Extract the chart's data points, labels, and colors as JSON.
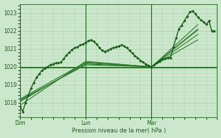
{
  "bg_color": "#cce8cc",
  "grid_color": "#aaccaa",
  "line_color_dark": "#1a5c1a",
  "line_color_mid": "#2d7a2d",
  "xlabel": "Pression niveau de la mer( hPa )",
  "ylim": [
    1017.2,
    1023.5
  ],
  "yticks": [
    1018,
    1019,
    1020,
    1021,
    1022,
    1023
  ],
  "xtick_positions": [
    0,
    24,
    48
  ],
  "xtick_labels": [
    "Dim",
    "Lun",
    "Mar"
  ],
  "xlim": [
    0,
    72
  ],
  "figsize": [
    3.2,
    2.0
  ],
  "dpi": 100,
  "main_x": [
    0,
    1,
    2,
    3,
    4,
    5,
    6,
    7,
    8,
    9,
    10,
    11,
    12,
    13,
    14,
    15,
    16,
    17,
    18,
    19,
    20,
    21,
    22,
    23,
    24,
    25,
    26,
    27,
    28,
    29,
    30,
    31,
    32,
    33,
    34,
    35,
    36,
    37,
    38,
    39,
    40,
    41,
    42,
    43,
    44,
    45,
    46,
    47,
    48,
    49,
    50,
    51,
    52,
    53,
    54,
    55,
    56,
    57,
    58,
    59,
    60,
    61,
    62,
    63,
    64,
    65,
    66,
    67,
    68,
    69,
    70,
    71
  ],
  "main_y": [
    1017.8,
    1017.5,
    1018.0,
    1018.4,
    1018.8,
    1019.1,
    1019.4,
    1019.6,
    1019.8,
    1019.9,
    1020.0,
    1020.1,
    1020.15,
    1020.2,
    1020.2,
    1020.25,
    1020.45,
    1020.65,
    1020.8,
    1020.95,
    1021.05,
    1021.1,
    1021.2,
    1021.25,
    1021.35,
    1021.45,
    1021.5,
    1021.4,
    1021.25,
    1021.05,
    1020.9,
    1020.85,
    1020.9,
    1021.0,
    1021.05,
    1021.1,
    1021.15,
    1021.2,
    1021.15,
    1021.05,
    1020.9,
    1020.75,
    1020.6,
    1020.5,
    1020.35,
    1020.25,
    1020.15,
    1020.05,
    1020.0,
    1020.1,
    1020.2,
    1020.3,
    1020.4,
    1020.45,
    1020.5,
    1020.5,
    1021.1,
    1021.6,
    1022.1,
    1022.3,
    1022.55,
    1022.8,
    1023.05,
    1023.1,
    1022.95,
    1022.75,
    1022.6,
    1022.5,
    1022.35,
    1022.55,
    1022.0,
    1022.0
  ],
  "main_color": "#1a5c1a",
  "main_lw": 1.0,
  "main_ms": 2.2,
  "lines": [
    {
      "x": [
        0,
        24,
        48,
        65
      ],
      "y": [
        1018.05,
        1020.2,
        1020.0,
        1022.05
      ]
    },
    {
      "x": [
        0,
        24,
        48,
        65
      ],
      "y": [
        1017.85,
        1020.3,
        1019.98,
        1022.35
      ]
    },
    {
      "x": [
        0,
        24,
        48,
        65
      ],
      "y": [
        1018.1,
        1020.15,
        1020.0,
        1021.8
      ]
    },
    {
      "x": [
        0,
        24,
        48,
        65
      ],
      "y": [
        1018.15,
        1020.1,
        1020.0,
        1021.5
      ]
    },
    {
      "x": [
        0,
        24,
        48,
        65
      ],
      "y": [
        1018.2,
        1020.25,
        1020.0,
        1022.1
      ]
    },
    {
      "x": [
        0,
        72
      ],
      "y": [
        1020.0,
        1020.0
      ]
    },
    {
      "x": [
        0,
        72
      ],
      "y": [
        1019.95,
        1019.95
      ]
    }
  ],
  "line_color": "#2d7a2d",
  "line_lw": 0.8
}
